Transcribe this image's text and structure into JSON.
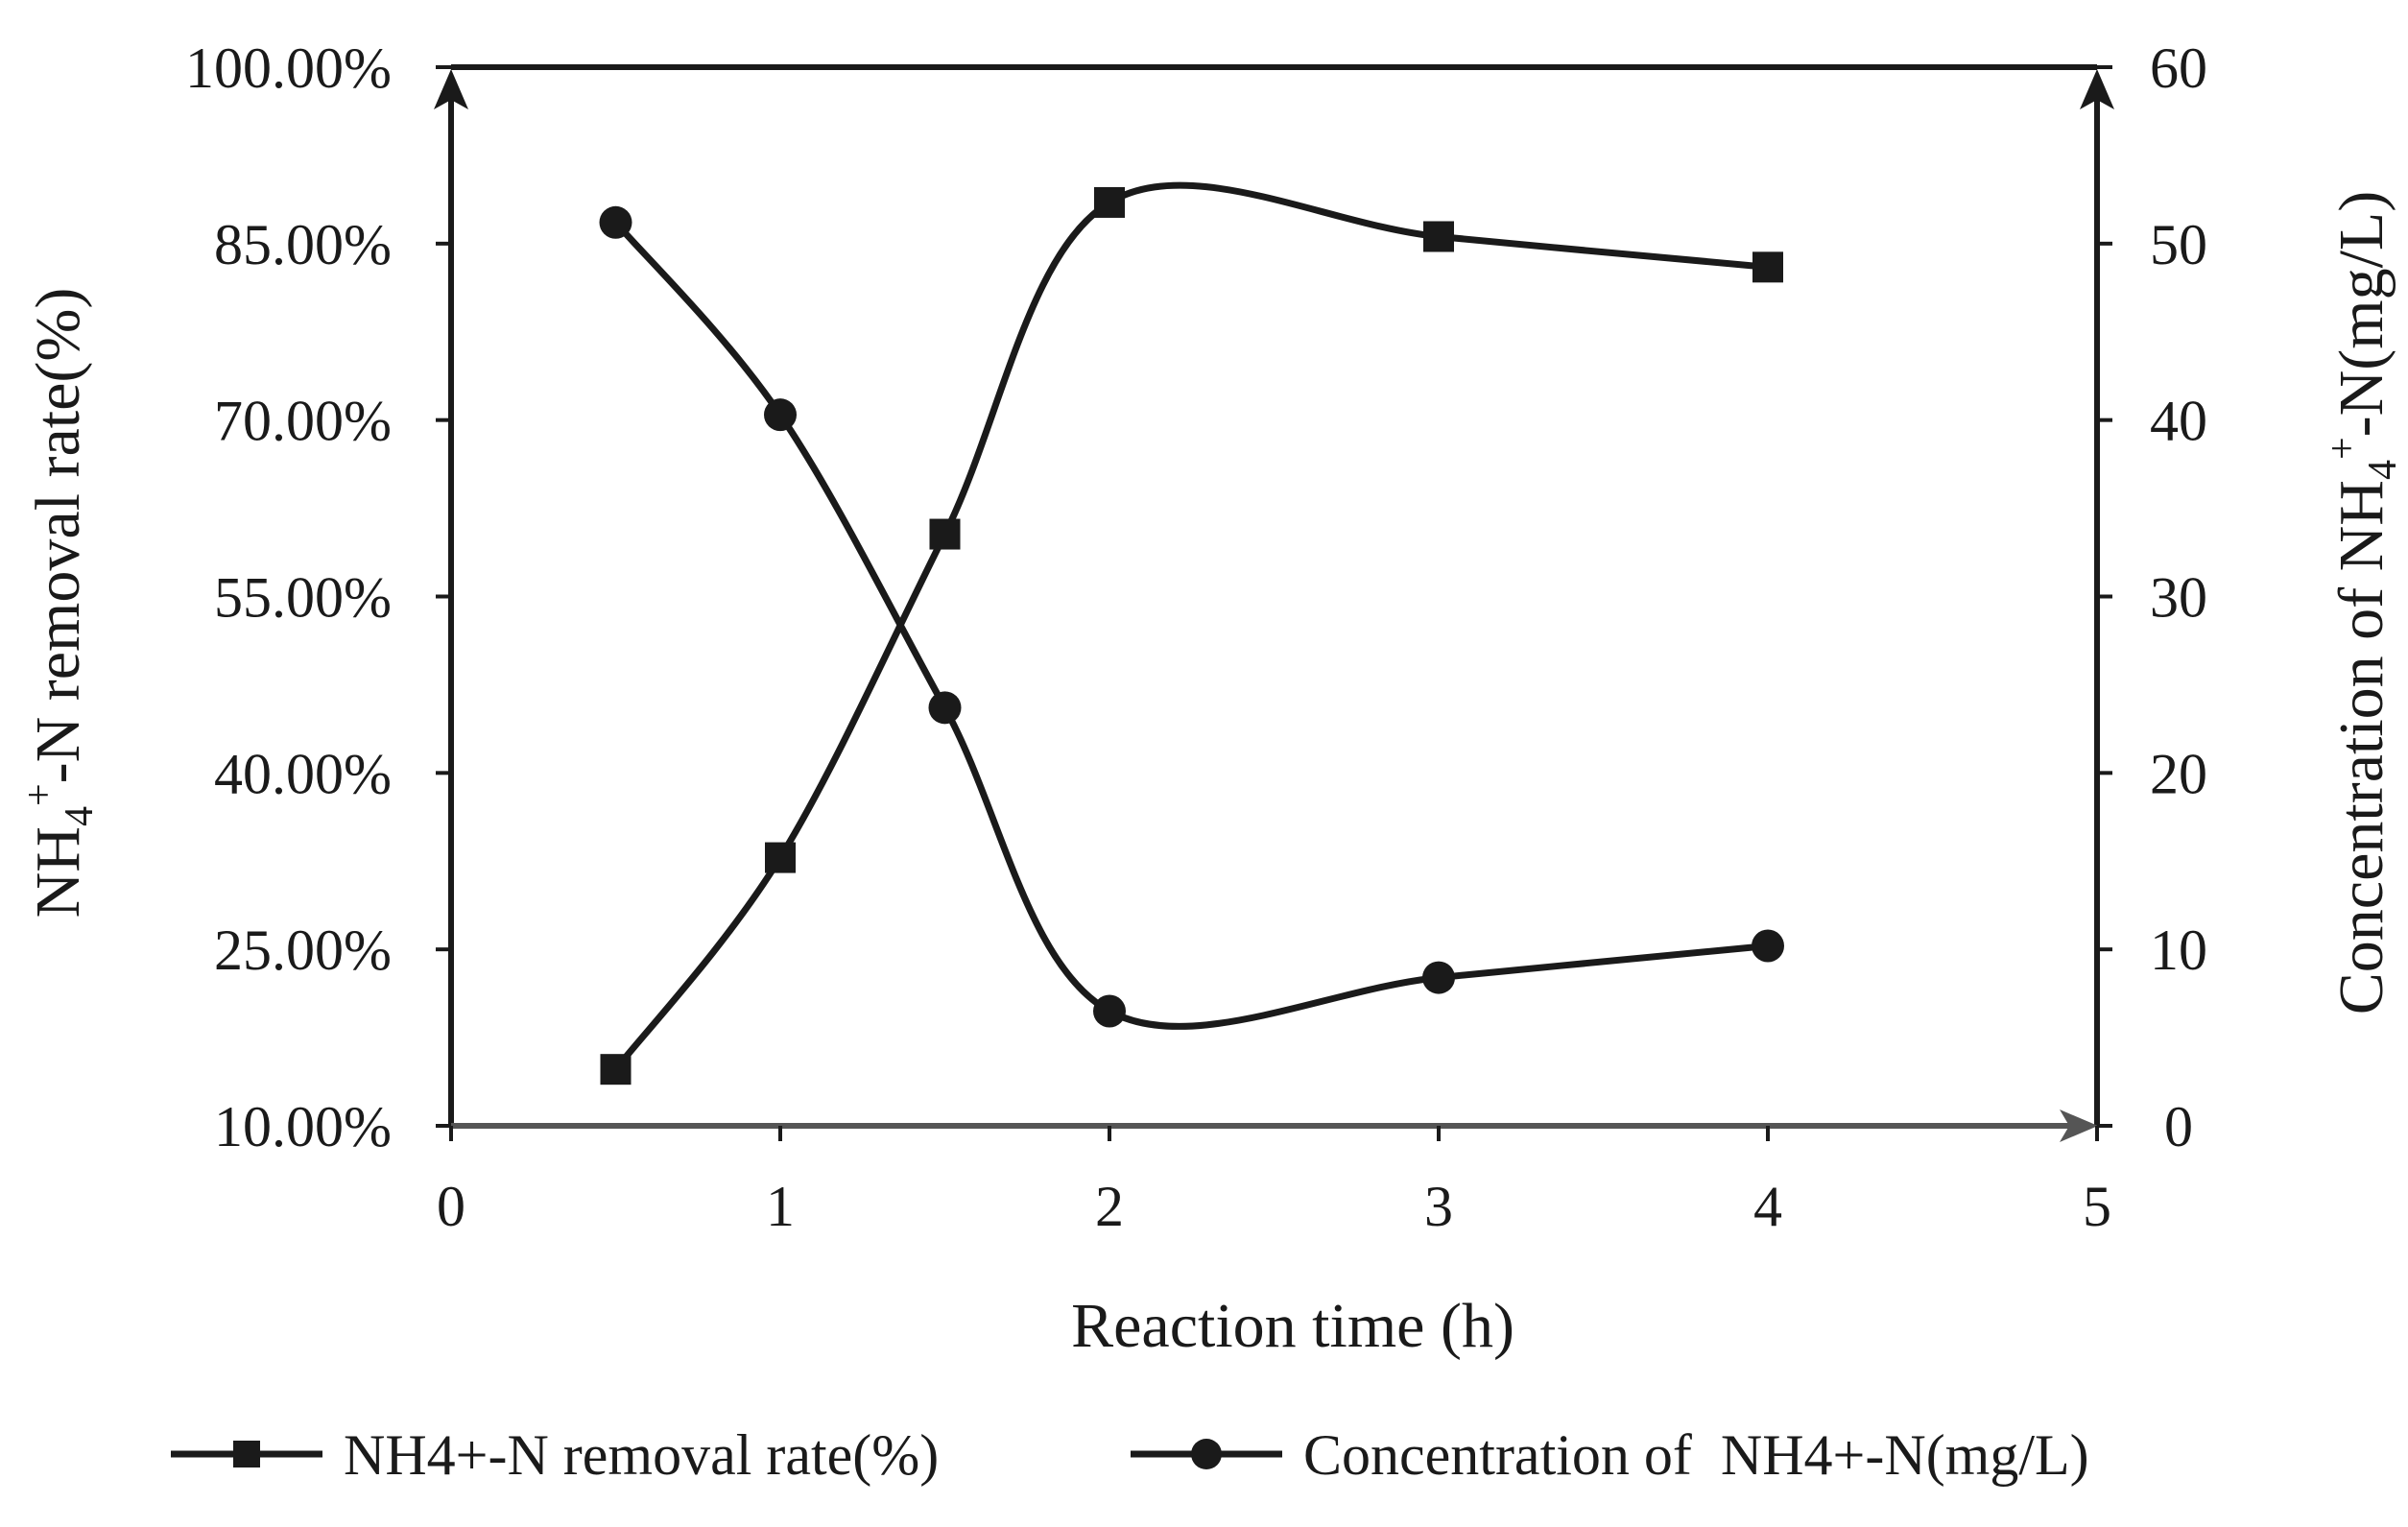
{
  "chart_data": {
    "type": "line",
    "x_axis": {
      "label": "Reaction time (h)",
      "range": [
        0,
        5
      ],
      "ticks": [
        "0",
        "1",
        "2",
        "3",
        "4",
        "5"
      ]
    },
    "y_left_axis": {
      "label": "NH4+-N removal rate(%)",
      "label_parts": {
        "base": "NH",
        "sub": "4",
        "sup": "+",
        "rest": "-N removal rate(%)"
      },
      "range": [
        10,
        100
      ],
      "ticks": [
        "10.00%",
        "25.00%",
        "40.00%",
        "55.00%",
        "70.00%",
        "85.00%",
        "100.00%"
      ],
      "tick_values": [
        10,
        25,
        40,
        55,
        70,
        85,
        100
      ]
    },
    "y_right_axis": {
      "label": "Concentration of NH4+-N(mg/L)",
      "label_parts": {
        "base": "Concentration of NH",
        "sub": "4",
        "sup": "+",
        "rest": "-N(mg/L)"
      },
      "range": [
        0,
        60
      ],
      "ticks": [
        "0",
        "10",
        "20",
        "30",
        "40",
        "50",
        "60"
      ],
      "tick_values": [
        0,
        10,
        20,
        30,
        40,
        50,
        60
      ]
    },
    "series": [
      {
        "name": "NH4+-N removal rate(%)",
        "axis": "left",
        "marker": "square",
        "x": [
          0.5,
          1,
          1.5,
          2,
          3,
          4
        ],
        "values": [
          14.8,
          32.8,
          60.3,
          88.5,
          85.6,
          83.0
        ]
      },
      {
        "name": "Concentration of  NH4+-N(mg/L)",
        "axis": "right",
        "marker": "circle",
        "x": [
          0.5,
          1,
          1.5,
          2,
          3,
          4
        ],
        "values": [
          51.2,
          40.3,
          23.7,
          6.5,
          8.4,
          10.2
        ]
      }
    ],
    "legend_position": "bottom",
    "grid": false,
    "colors": {
      "line": "#1a1a1a",
      "x_axis": "#555555"
    }
  }
}
